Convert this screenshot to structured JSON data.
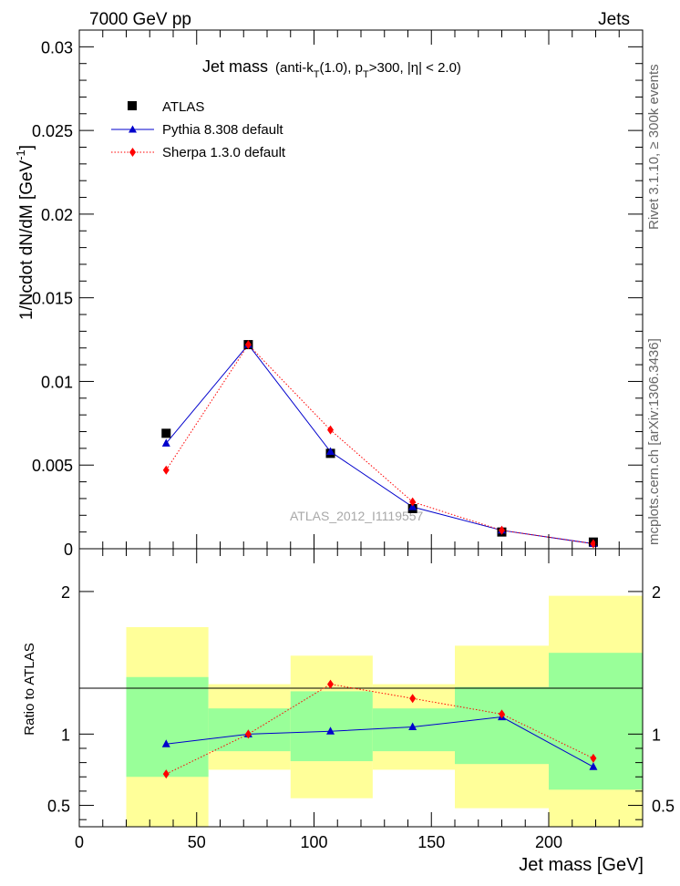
{
  "header": {
    "left": "7000 GeV pp",
    "right": "Jets"
  },
  "title": {
    "main": "Jet mass",
    "sub": "(anti-k",
    "sub_k_index": "T",
    "sub_mid": "(1.0), p",
    "sub_p_index": "T",
    "sub_end": ">300, |η| < 2.0)"
  },
  "side_labels": {
    "rivet": "Rivet 3.1.10, ≥ 300k events",
    "mcplots": "mcplots.cern.ch [arXiv:1306.3436]"
  },
  "watermark": "ATLAS_2012_I1119557",
  "legend": {
    "atlas": "ATLAS",
    "pythia": "Pythia 8.308 default",
    "sherpa": "Sherpa 1.3.0 default"
  },
  "colors": {
    "atlas": "#000000",
    "pythia": "#0000cc",
    "sherpa": "#ff0000",
    "band_inner": "#99ff99",
    "band_outer": "#ffff99"
  },
  "chart_data": [
    {
      "type": "line",
      "panel": "main",
      "ylabel": "1/Ncdot dN/dM [GeV",
      "ylabel_sup": "-1",
      "ylabel_close": "]",
      "xlim": [
        0,
        240
      ],
      "ylim": [
        0,
        0.031
      ],
      "ytick_labels": [
        "0",
        "0.005",
        "0.01",
        "0.015",
        "0.02",
        "0.025",
        "0.03"
      ],
      "ytick_values": [
        0,
        0.005,
        0.01,
        0.015,
        0.02,
        0.025,
        0.03
      ],
      "x": [
        37,
        72,
        107,
        142,
        180,
        219
      ],
      "series": [
        {
          "name": "ATLAS",
          "marker": "square",
          "values": [
            0.0069,
            0.0122,
            0.0057,
            0.0024,
            0.001,
            0.0004
          ]
        },
        {
          "name": "Pythia 8.308 default",
          "marker": "triangle",
          "line": "solid",
          "values": [
            0.0063,
            0.0122,
            0.0058,
            0.0025,
            0.0011,
            0.0003
          ]
        },
        {
          "name": "Sherpa 1.3.0 default",
          "marker": "diamond",
          "line": "dotted",
          "values": [
            0.0047,
            0.0122,
            0.0071,
            0.0028,
            0.0011,
            0.0003
          ]
        }
      ]
    },
    {
      "type": "line",
      "panel": "ratio",
      "ylabel": "Ratio to ATLAS",
      "xlabel": "Jet mass [GeV]",
      "xlim": [
        0,
        240
      ],
      "ylim": [
        0.35,
        2.3
      ],
      "xtick_labels": [
        "0",
        "50",
        "100",
        "150",
        "200"
      ],
      "xtick_values": [
        0,
        50,
        100,
        150,
        200
      ],
      "ytick_labels": [
        "0.5",
        "1",
        "2"
      ],
      "ytick_values": [
        0.5,
        1,
        2
      ],
      "bins": [
        {
          "lo": 20,
          "hi": 55,
          "inner": [
            0.7,
            1.4
          ],
          "outer": [
            0.35,
            1.75
          ]
        },
        {
          "lo": 55,
          "hi": 90,
          "inner": [
            0.88,
            1.18
          ],
          "outer": [
            0.75,
            1.35
          ]
        },
        {
          "lo": 90,
          "hi": 125,
          "inner": [
            0.81,
            1.3
          ],
          "outer": [
            0.55,
            1.55
          ]
        },
        {
          "lo": 125,
          "hi": 160,
          "inner": [
            0.88,
            1.18
          ],
          "outer": [
            0.75,
            1.35
          ]
        },
        {
          "lo": 160,
          "hi": 200,
          "inner": [
            0.79,
            1.33
          ],
          "outer": [
            0.48,
            1.62
          ]
        },
        {
          "lo": 200,
          "hi": 240,
          "inner": [
            0.61,
            1.57
          ],
          "outer": [
            0.35,
            1.97
          ]
        }
      ],
      "x": [
        37,
        72,
        107,
        142,
        180,
        219
      ],
      "series": [
        {
          "name": "Pythia 8.308 default",
          "marker": "triangle",
          "line": "solid",
          "values": [
            0.93,
            1.0,
            1.02,
            1.05,
            1.12,
            0.77
          ]
        },
        {
          "name": "Sherpa 1.3.0 default",
          "marker": "diamond",
          "line": "dotted",
          "values": [
            0.72,
            1.0,
            1.35,
            1.25,
            1.14,
            0.83
          ]
        }
      ]
    }
  ]
}
